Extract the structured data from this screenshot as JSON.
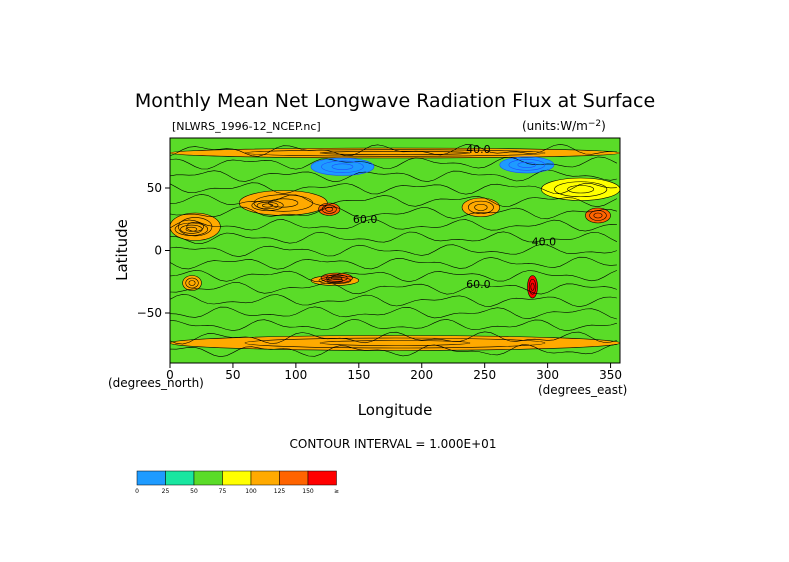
{
  "chart_data": {
    "type": "contour",
    "title": "Monthly Mean Net Longwave Radiation Flux at Surface",
    "file_label": "[NLWRS_1996-12_NCEP.nc]",
    "units_label": "(units:W/m^-2)",
    "units_base": "(units:W/m",
    "units_sup": "−2",
    "units_close": ")",
    "xlabel": "Longitude",
    "ylabel": "Latitude",
    "x_unit": "(degrees_east)",
    "y_unit": "(degrees_north)",
    "xlim": [
      0,
      357.5
    ],
    "ylim": [
      -90,
      90
    ],
    "x_ticks": [
      0,
      50,
      100,
      150,
      200,
      250,
      300,
      350
    ],
    "y_ticks": [
      50,
      0,
      -50
    ],
    "y_tick_labels": [
      "50",
      "0",
      "−50"
    ],
    "contour_interval_text": "CONTOUR INTERVAL = 1.000E+01",
    "contour_labels": [
      {
        "text": "40.0",
        "lon": 245,
        "lat": 78
      },
      {
        "text": "60.0",
        "lon": 155,
        "lat": 22
      },
      {
        "text": "40.0",
        "lon": 297,
        "lat": 4
      },
      {
        "text": "60.0",
        "lon": 245,
        "lat": -30
      }
    ],
    "colorbar": {
      "ticks": [
        "0",
        "25",
        "50",
        "75",
        "100",
        "125",
        "150",
        "≥"
      ],
      "colors": [
        "#1e9bff",
        "#19e6a0",
        "#5adc28",
        "#ffff00",
        "#ffaa00",
        "#ff6400",
        "#ff0000"
      ]
    },
    "regions": [
      {
        "level": 125,
        "lon": [
          4,
          30
        ],
        "lat": [
          12,
          22
        ]
      },
      {
        "level": 100,
        "lon": [
          0,
          40
        ],
        "lat": [
          8,
          30
        ]
      },
      {
        "level": 125,
        "lon": [
          65,
          90
        ],
        "lat": [
          32,
          40
        ]
      },
      {
        "level": 100,
        "lon": [
          55,
          125
        ],
        "lat": [
          28,
          48
        ]
      },
      {
        "level": 125,
        "lon": [
          118,
          135
        ],
        "lat": [
          28,
          38
        ]
      },
      {
        "level": 100,
        "lon": [
          232,
          262
        ],
        "lat": [
          27,
          42
        ]
      },
      {
        "level": 125,
        "lon": [
          330,
          350
        ],
        "lat": [
          22,
          34
        ]
      },
      {
        "level": 75,
        "lon": [
          295,
          357.5
        ],
        "lat": [
          40,
          58
        ]
      },
      {
        "level": 100,
        "lon": [
          112,
          150
        ],
        "lat": [
          -20,
          -28
        ]
      },
      {
        "level": 125,
        "lon": [
          120,
          145
        ],
        "lat": [
          -18,
          -26
        ]
      },
      {
        "level": 150,
        "lon": [
          284,
          292
        ],
        "lat": [
          -20,
          -38
        ]
      },
      {
        "level": 100,
        "lon": [
          10,
          25
        ],
        "lat": [
          -20,
          -32
        ]
      },
      {
        "level": 100,
        "lon": [
          0,
          357.5
        ],
        "lat": [
          -68,
          -80
        ]
      },
      {
        "level": 100,
        "lon": [
          0,
          357.5
        ],
        "lat": [
          74,
          82
        ]
      },
      {
        "level": 0,
        "lon": [
          112,
          162
        ],
        "lat": [
          60,
          74
        ]
      },
      {
        "level": 0,
        "lon": [
          262,
          305
        ],
        "lat": [
          62,
          75
        ]
      }
    ]
  }
}
